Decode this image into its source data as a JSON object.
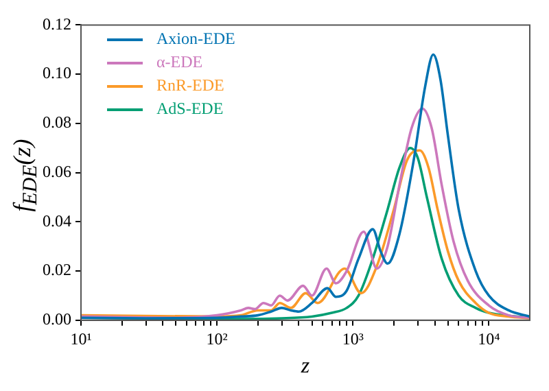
{
  "chart_data": {
    "type": "line",
    "xlabel": "z",
    "ylabel": "f$_{EDE}$(z)",
    "log": "x",
    "legend": "top left",
    "grid": false,
    "marker": "none",
    "line_style": "solid",
    "xlim": [
      10,
      20000
    ],
    "xticks": [
      {
        "value": 10,
        "label": "10¹"
      },
      {
        "value": 20,
        "label": null
      },
      {
        "value": 30,
        "label": null
      },
      {
        "value": 40,
        "label": null
      },
      {
        "value": 50,
        "label": null
      },
      {
        "value": 60,
        "label": null
      },
      {
        "value": 70,
        "label": null
      },
      {
        "value": 80,
        "label": null
      },
      {
        "value": 90,
        "label": null
      },
      {
        "value": 100,
        "label": "10²"
      },
      {
        "value": 200,
        "label": null
      },
      {
        "value": 300,
        "label": null
      },
      {
        "value": 400,
        "label": null
      },
      {
        "value": 500,
        "label": null
      },
      {
        "value": 600,
        "label": null
      },
      {
        "value": 700,
        "label": null
      },
      {
        "value": 800,
        "label": null
      },
      {
        "value": 900,
        "label": null
      },
      {
        "value": 1000,
        "label": "10³"
      },
      {
        "value": 2000,
        "label": null
      },
      {
        "value": 3000,
        "label": null
      },
      {
        "value": 4000,
        "label": null
      },
      {
        "value": 5000,
        "label": null
      },
      {
        "value": 6000,
        "label": null
      },
      {
        "value": 7000,
        "label": null
      },
      {
        "value": 8000,
        "label": null
      },
      {
        "value": 9000,
        "label": null
      },
      {
        "value": 10000,
        "label": "10⁴"
      }
    ],
    "ylim": [
      0,
      0.12
    ],
    "yticks": [
      {
        "value": 0,
        "label": "0.00"
      },
      {
        "value": 0.02,
        "label": "0.02"
      },
      {
        "value": 0.04,
        "label": "0.04"
      },
      {
        "value": 0.06,
        "label": "0.06"
      },
      {
        "value": 0.08,
        "label": "0.08"
      },
      {
        "value": 0.1,
        "label": "0.10"
      },
      {
        "value": 0.12,
        "label": "0.12"
      }
    ],
    "series": [
      {
        "name": "Axion-EDE",
        "color": "#0173b2",
        "x": [
          10,
          30,
          100,
          150,
          200,
          250,
          300,
          350,
          400,
          500,
          650,
          750,
          900,
          1100,
          1400,
          1600,
          1800,
          2200,
          2800,
          3400,
          3900,
          4400,
          5000,
          6000,
          8000,
          10000,
          14000,
          20000
        ],
        "values": [
          0.001,
          0.0008,
          0.001,
          0.0015,
          0.002,
          0.0035,
          0.005,
          0.004,
          0.0035,
          0.007,
          0.013,
          0.0095,
          0.012,
          0.025,
          0.037,
          0.028,
          0.023,
          0.035,
          0.065,
          0.095,
          0.108,
          0.098,
          0.075,
          0.045,
          0.02,
          0.01,
          0.004,
          0.0015
        ]
      },
      {
        "name": "α-EDE",
        "color": "#cc78bc",
        "x": [
          10,
          50,
          100,
          150,
          170,
          190,
          220,
          250,
          290,
          330,
          430,
          500,
          640,
          750,
          900,
          1200,
          1500,
          1800,
          2200,
          2700,
          3250,
          3800,
          4500,
          5500,
          7000,
          10000,
          14000,
          20000
        ],
        "values": [
          0.0015,
          0.001,
          0.002,
          0.004,
          0.005,
          0.0045,
          0.007,
          0.006,
          0.01,
          0.008,
          0.014,
          0.01,
          0.021,
          0.015,
          0.02,
          0.036,
          0.021,
          0.03,
          0.055,
          0.078,
          0.086,
          0.078,
          0.055,
          0.032,
          0.016,
          0.006,
          0.002,
          0.001
        ]
      },
      {
        "name": "RnR-EDE",
        "color": "#fb9a29",
        "x": [
          10,
          100,
          150,
          200,
          250,
          290,
          350,
          450,
          550,
          870,
          1150,
          1500,
          2000,
          2500,
          3100,
          3600,
          4200,
          5000,
          6000,
          8000,
          10000,
          14000,
          20000
        ],
        "values": [
          0.002,
          0.0015,
          0.002,
          0.004,
          0.004,
          0.007,
          0.005,
          0.011,
          0.007,
          0.021,
          0.011,
          0.022,
          0.045,
          0.065,
          0.069,
          0.062,
          0.045,
          0.028,
          0.016,
          0.007,
          0.003,
          0.0015,
          0.0008
        ]
      },
      {
        "name": "AdS-EDE",
        "color": "#029e73",
        "x": [
          10,
          100,
          300,
          500,
          700,
          900,
          1100,
          1400,
          1800,
          2200,
          2640,
          3000,
          3500,
          4500,
          6000,
          8000,
          10000,
          20000
        ],
        "values": [
          0.001,
          0.0005,
          0.0008,
          0.0015,
          0.003,
          0.005,
          0.01,
          0.025,
          0.045,
          0.062,
          0.07,
          0.066,
          0.05,
          0.025,
          0.01,
          0.005,
          0.003,
          0.001
        ]
      }
    ]
  }
}
